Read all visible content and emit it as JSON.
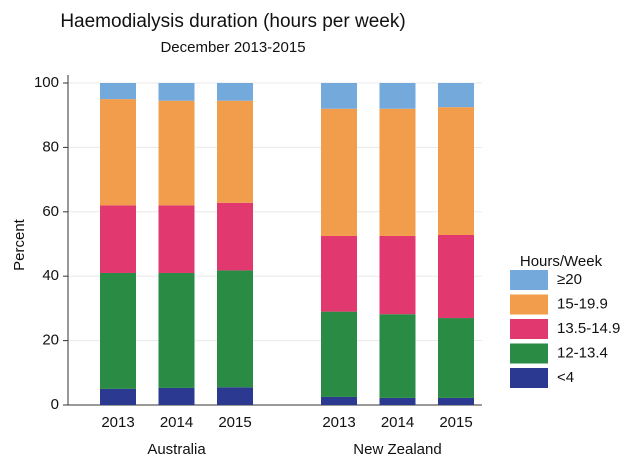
{
  "chart_data": {
    "type": "stacked_bar",
    "title": "Haemodialysis duration (hours per week)",
    "subtitle": "December 2013-2015",
    "y_label": "Percent",
    "groups": [
      {
        "name": "Australia",
        "categories": [
          "2013",
          "2014",
          "2015"
        ]
      },
      {
        "name": "New Zealand",
        "categories": [
          "2013",
          "2014",
          "2015"
        ]
      }
    ],
    "series": [
      {
        "name": "<4",
        "color": "#2b3990",
        "values": [
          5,
          5.3,
          5.5,
          2.5,
          2.2,
          2.2
        ]
      },
      {
        "name": "12-13.4",
        "color": "#2a8b45",
        "values": [
          36,
          35.7,
          36.3,
          26.5,
          26,
          24.8
        ]
      },
      {
        "name": "13.5-14.9",
        "color": "#e0386f",
        "values": [
          21,
          21,
          21,
          23.5,
          24.3,
          25.8
        ]
      },
      {
        "name": "15-19.9",
        "color": "#f29d4b",
        "values": [
          33,
          32.5,
          31.7,
          39.5,
          39.5,
          39.7
        ]
      },
      {
        "name": "≥20",
        "color": "#74aadb",
        "values": [
          5,
          5.5,
          5.5,
          8,
          8,
          7.5
        ]
      }
    ],
    "legend_title": "Hours/Week",
    "legend_position": "right",
    "ylim": [
      0,
      100
    ],
    "yticks": [
      0,
      20,
      40,
      60,
      80,
      100
    ],
    "grid": true
  }
}
